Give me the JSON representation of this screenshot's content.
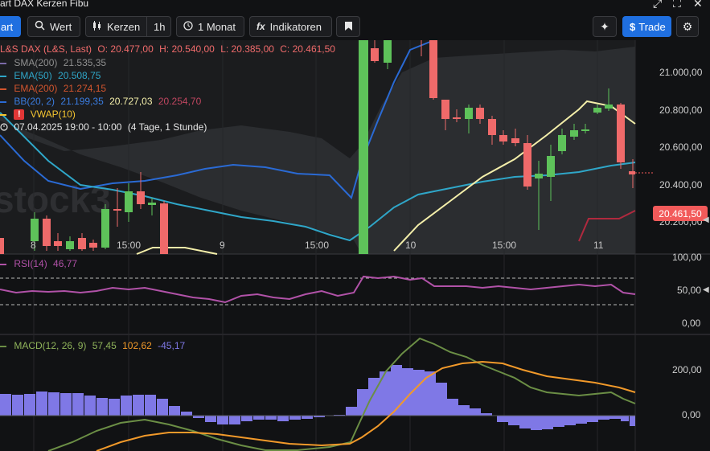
{
  "window": {
    "title": "art DAX Kerzen Fibu",
    "icons": [
      "resize-icon",
      "close-icon"
    ]
  },
  "toolbar": {
    "chart_label": "art",
    "search_label": "Wert",
    "type_label": "Kerzen",
    "interval_label": "1h",
    "range_label": "1 Monat",
    "indicators_label": "Indikatoren",
    "trade_label": "Trade"
  },
  "legend": {
    "instrument": "L&S DAX (L&S, Last)",
    "o": "O: 20.477,00",
    "h": "H: 20.540,00",
    "l": "L: 20.385,00",
    "c": "C: 20.461,50",
    "sma_label": "SMA(200)",
    "sma_value": "21.535,35",
    "ema50_label": "EMA(50)",
    "ema50_value": "20.508,75",
    "ema200_label": "EMA(200)",
    "ema200_value": "21.274,15",
    "bb_label": "BB(20, 2)",
    "bb_v1": "21.199,35",
    "bb_v2": "20.727,03",
    "bb_v3": "20.254,70",
    "vwap_label": "VWAP(10)",
    "time_range": "07.04.2025 19:00 - 10:00",
    "time_detail": "(4 Tage, 1 Stunde)",
    "rsi_label": "RSI(14)",
    "rsi_value": "46,77",
    "macd_label": "MACD(12, 26, 9)",
    "macd_v1": "57,45",
    "macd_v2": "102,62",
    "macd_v3": "-45,17"
  },
  "price_tag": "20.461,50",
  "y_axis_labels": [
    "21.000,00",
    "20.800,00",
    "20.600,00",
    "20.400,00",
    "20.200,00"
  ],
  "rsi_axis_labels": [
    "100,00",
    "50,00",
    "0,00"
  ],
  "macd_axis_labels": [
    "200,00",
    "0,00"
  ],
  "x_axis_labels": [
    "8",
    "15:00",
    "9",
    "15:00",
    "10",
    "15:00",
    "11"
  ],
  "watermark": "stock3",
  "colors": {
    "up": "#5ec25a",
    "down": "#ef6a6a",
    "ema50": "#2fa6c8",
    "bb": "#2a6ad4",
    "vwap": "#f4efaa",
    "rsi": "#b152a8",
    "macd": "#6b8e45",
    "signal": "#f1992a",
    "hist": "#7f78e6",
    "accent": "#1f6fe0"
  }
}
